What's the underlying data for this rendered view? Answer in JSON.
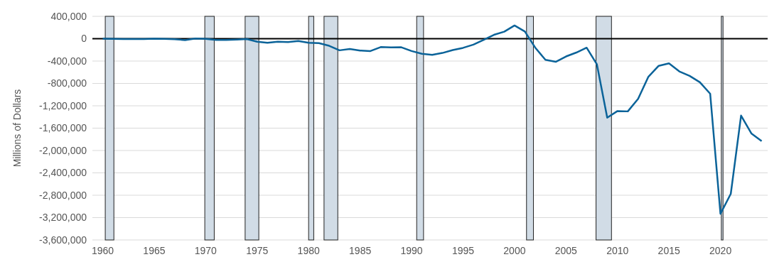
{
  "chart_data": {
    "type": "line",
    "ylabel": "Millions of Dollars",
    "x": [
      "1960",
      "1961",
      "1962",
      "1963",
      "1964",
      "1965",
      "1966",
      "1967",
      "1968",
      "1969",
      "1970",
      "1971",
      "1972",
      "1973",
      "1974",
      "1975",
      "1976",
      "1977",
      "1978",
      "1979",
      "1980",
      "1981",
      "1982",
      "1983",
      "1984",
      "1985",
      "1986",
      "1987",
      "1988",
      "1989",
      "1990",
      "1991",
      "1992",
      "1993",
      "1994",
      "1995",
      "1996",
      "1997",
      "1998",
      "1999",
      "2000",
      "2001",
      "2002",
      "2003",
      "2004",
      "2005",
      "2006",
      "2007",
      "2008",
      "2009",
      "2010",
      "2011",
      "2012",
      "2013",
      "2014",
      "2015",
      "2016",
      "2017",
      "2018",
      "2019",
      "2020",
      "2021",
      "2022",
      "2023",
      "2024"
    ],
    "series": [
      {
        "color": "#0b6399",
        "values": [
          0,
          -3000,
          -7000,
          -5000,
          -6000,
          -1000,
          -4000,
          -9000,
          -25000,
          3000,
          -3000,
          -23000,
          -23000,
          -15000,
          -6000,
          -53000,
          -74000,
          -54000,
          -59000,
          -41000,
          -74000,
          -79000,
          -128000,
          -208000,
          -185000,
          -212000,
          -221000,
          -150000,
          -155000,
          -153000,
          -221000,
          -269000,
          -290000,
          -255000,
          -203000,
          -164000,
          -107000,
          -22000,
          69000,
          126000,
          236000,
          128000,
          -158000,
          -378000,
          -413000,
          -318000,
          -248000,
          -161000,
          -459000,
          -1413000,
          -1294000,
          -1300000,
          -1077000,
          -680000,
          -485000,
          -442000,
          -585000,
          -665000,
          -779000,
          -984000,
          -3132000,
          -2775000,
          -1376000,
          -1694000,
          -1833000
        ]
      }
    ],
    "xlim": [
      "1959-01-01",
      "2024-08-01"
    ],
    "xticks": [
      "1960",
      "1965",
      "1970",
      "1975",
      "1980",
      "1985",
      "1990",
      "1995",
      "2000",
      "2005",
      "2010",
      "2015",
      "2020"
    ],
    "ylim": [
      -3600000,
      400000
    ],
    "yticks": [
      {
        "value": 400000,
        "label": "400,000"
      },
      0,
      {
        "value": -400000,
        "label": "-400,000"
      },
      {
        "value": -800000,
        "label": "-800,000"
      },
      {
        "value": -1200000,
        "label": "-1,200,000"
      },
      {
        "value": -1600000,
        "label": "-1,600,000"
      },
      {
        "value": -2000000,
        "label": "-2,000,000"
      },
      {
        "value": -2400000,
        "label": "-2,400,000"
      },
      {
        "value": -2800000,
        "label": "-2,800,000"
      },
      {
        "value": -3200000,
        "label": "-3,200,000"
      },
      {
        "value": -3600000,
        "label": "-3,600,000"
      }
    ],
    "grid": "y",
    "line_style": "solid",
    "ref_lines": [
      {
        "axis": "y",
        "value": 0,
        "color": "#000000"
      }
    ],
    "bands": [
      {
        "axis": "x",
        "from": "1960-04-01",
        "to": "1961-02-01",
        "color": "#d1dce6"
      },
      {
        "axis": "x",
        "from": "1969-12-01",
        "to": "1970-11-01",
        "color": "#d1dce6"
      },
      {
        "axis": "x",
        "from": "1973-11-01",
        "to": "1975-03-01",
        "color": "#d1dce6"
      },
      {
        "axis": "x",
        "from": "1980-01-01",
        "to": "1980-07-01",
        "color": "#d1dce6"
      },
      {
        "axis": "x",
        "from": "1981-07-01",
        "to": "1982-11-01",
        "color": "#d1dce6"
      },
      {
        "axis": "x",
        "from": "1990-07-01",
        "to": "1991-03-01",
        "color": "#d1dce6"
      },
      {
        "axis": "x",
        "from": "2001-03-01",
        "to": "2001-11-01",
        "color": "#d1dce6"
      },
      {
        "axis": "x",
        "from": "2007-12-01",
        "to": "2009-06-01",
        "color": "#d1dce6"
      },
      {
        "axis": "x",
        "from": "2020-02-01",
        "to": "2020-04-01",
        "color": "#d1dce6"
      }
    ]
  }
}
